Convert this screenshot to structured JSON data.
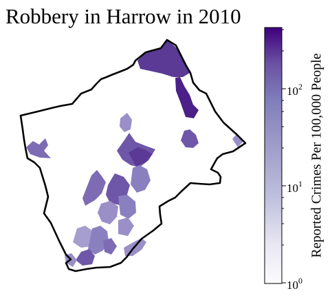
{
  "title": "Robbery in Harrow in 2010",
  "colorbar": {
    "label": "Reported Crimes Per 100,000 People",
    "scale": "log",
    "range": [
      1,
      420
    ],
    "colormap": "Purples",
    "low_color": "#fcfbfd",
    "high_color": "#3f007d",
    "ticks": [
      {
        "base": "10",
        "exp": "0",
        "value": 1
      },
      {
        "base": "10",
        "exp": "1",
        "value": 10
      },
      {
        "base": "10",
        "exp": "2",
        "value": 100
      }
    ]
  },
  "map": {
    "borough": "Harrow",
    "boundary_color": "#000000",
    "fill_colors": [
      "#5a3a95",
      "#6e56a8",
      "#7d6bb3",
      "#9a8fc7",
      "#8b80bf",
      "#4b2088",
      "#a59ecf"
    ]
  }
}
